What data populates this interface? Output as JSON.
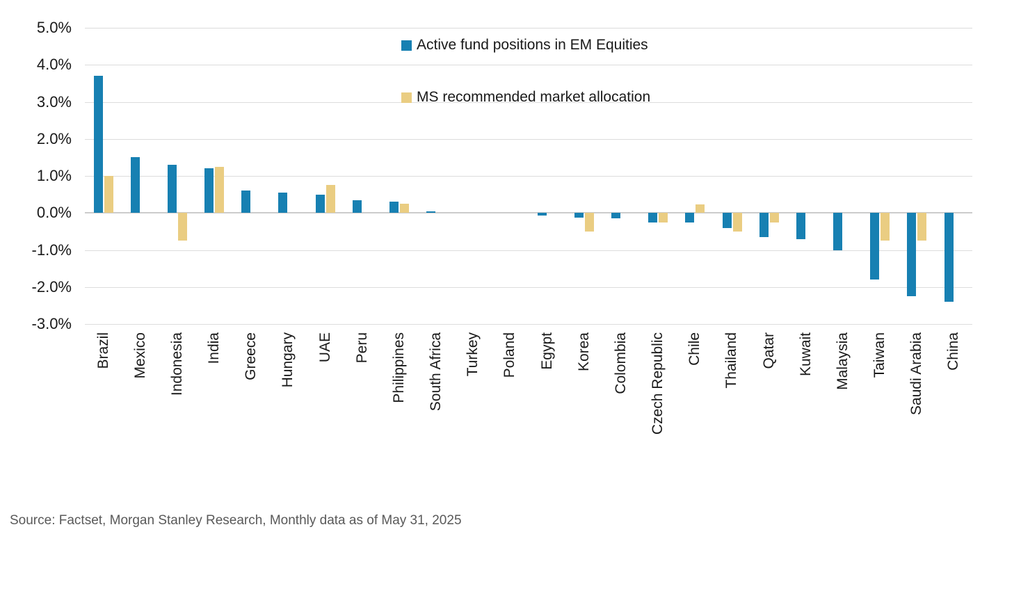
{
  "chart_data": {
    "type": "bar",
    "title": "",
    "xlabel": "",
    "ylabel": "",
    "categories": [
      "Brazil",
      "Mexico",
      "Indonesia",
      "India",
      "Greece",
      "Hungary",
      "UAE",
      "Peru",
      "Philippines",
      "South Africa",
      "Turkey",
      "Poland",
      "Egypt",
      "Korea",
      "Colombia",
      "Czech Republic",
      "Chile",
      "Thailand",
      "Qatar",
      "Kuwait",
      "Malaysia",
      "Taiwan",
      "Saudi Arabia",
      "China"
    ],
    "series": [
      {
        "name": "Active fund positions in EM Equities",
        "color": "#1780B2",
        "values": [
          3.7,
          1.5,
          1.3,
          1.2,
          0.6,
          0.55,
          0.5,
          0.35,
          0.3,
          0.05,
          0,
          0,
          -0.07,
          -0.12,
          -0.15,
          -0.25,
          -0.25,
          -0.4,
          -0.65,
          -0.7,
          -1.0,
          -1.8,
          -2.25,
          -2.4
        ]
      },
      {
        "name": "MS recommended market allocation",
        "color": "#EACD82",
        "values": [
          1.0,
          0,
          -0.75,
          1.25,
          0,
          0,
          0.75,
          0,
          0.25,
          0,
          0,
          0,
          0,
          -0.5,
          0,
          -0.25,
          0.23,
          -0.5,
          -0.25,
          0,
          0,
          -0.75,
          -0.75,
          0
        ]
      }
    ],
    "ylim": [
      -3.0,
      5.0
    ],
    "yticks": [
      "5.0%",
      "4.0%",
      "3.0%",
      "2.0%",
      "1.0%",
      "0.0%",
      "-1.0%",
      "-2.0%",
      "-3.0%"
    ],
    "ytick_values": [
      5,
      4,
      3,
      2,
      1,
      0,
      -1,
      -2,
      -3
    ],
    "grid": true,
    "legend_position": "top-center"
  },
  "legend": {
    "items": [
      {
        "label": "Active fund positions in EM Equities",
        "color": "#1780B2"
      },
      {
        "label": "MS recommended market allocation",
        "color": "#EACD82"
      }
    ]
  },
  "source_note": "Source: Factset, Morgan Stanley Research, Monthly data as of May 31, 2025",
  "colors": {
    "bar_blue": "#1780B2",
    "bar_tan": "#EACD82",
    "gridline": "#DCDCDC",
    "zero_line": "#CCCCCC",
    "axis_text": "#1A1A1A",
    "source_text": "#595959",
    "background": "#FFFFFF"
  }
}
